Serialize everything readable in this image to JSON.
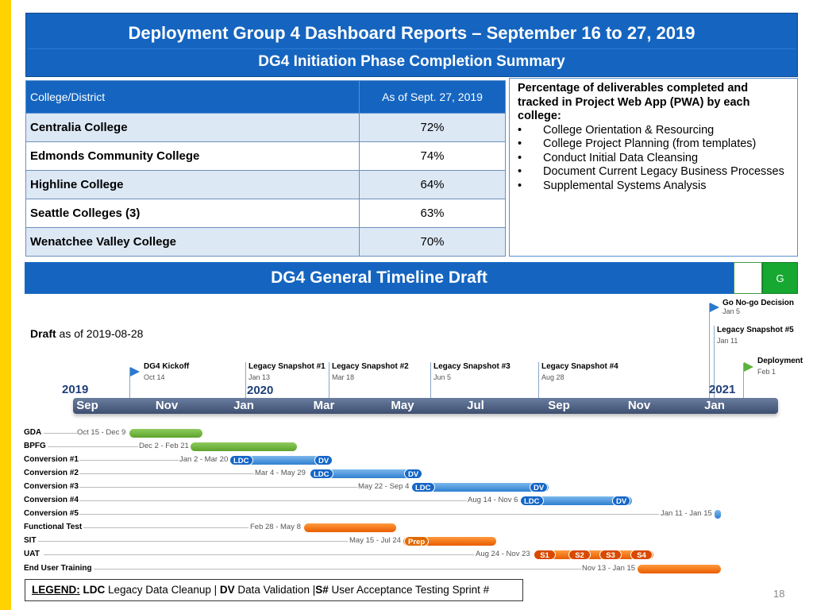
{
  "header": {
    "title": "Deployment Group 4 Dashboard Reports – September 16 to 27, 2019",
    "subtitle": "DG4 Initiation Phase Completion Summary"
  },
  "completion_table": {
    "col_college": "College/District",
    "col_date": "As of Sept. 27, 2019",
    "rows": [
      {
        "college": "Centralia College",
        "pct": "72%"
      },
      {
        "college": "Edmonds Community College",
        "pct": "74%"
      },
      {
        "college": "Highline College",
        "pct": "64%"
      },
      {
        "college": "Seattle Colleges (3)",
        "pct": "63%"
      },
      {
        "college": "Wenatchee Valley College",
        "pct": "70%"
      }
    ]
  },
  "notes": {
    "heading": "Percentage of deliverables completed and tracked in Project Web App (PWA) by each college:",
    "items": [
      "College Orientation & Resourcing",
      "College Project Planning (from templates)",
      "Conduct Initial Data Cleansing",
      "Document Current Legacy Business Processes",
      "Supplemental Systems Analysis"
    ]
  },
  "timeline_header": {
    "title": "DG4 General Timeline Draft",
    "status": "G",
    "status_color": "#16a830"
  },
  "draft": {
    "bold": "Draft",
    "rest": " as of 2019-08-28"
  },
  "milestones": [
    {
      "label": "DG4 Kickoff",
      "date": "Oct 14"
    },
    {
      "label": "Legacy Snapshot #1",
      "date": "Jan 13"
    },
    {
      "label": "Legacy Snapshot #2",
      "date": "Mar 18"
    },
    {
      "label": "Legacy Snapshot #3",
      "date": "Jun 5"
    },
    {
      "label": "Legacy Snapshot #4",
      "date": "Aug 28"
    },
    {
      "label": "Go No-go Decision",
      "date": "Jan 5"
    },
    {
      "label": "Legacy Snapshot #5",
      "date": "Jan 11"
    },
    {
      "label": "Deployment",
      "date": "Feb 1"
    }
  ],
  "years": [
    "2019",
    "2020",
    "2021"
  ],
  "months": [
    "Sep",
    "Nov",
    "Jan",
    "Mar",
    "May",
    "Jul",
    "Sep",
    "Nov",
    "Jan"
  ],
  "tasks": [
    {
      "name": "GDA",
      "range": "Oct 15 - Dec 9"
    },
    {
      "name": "BPFG",
      "range": "Dec 2 - Feb 21"
    },
    {
      "name": "Conversion #1",
      "range": "Jan 2 - Mar 20"
    },
    {
      "name": "Conversion #2",
      "range": "Mar 4 - May 29"
    },
    {
      "name": "Conversion #3",
      "range": "May 22 - Sep 4"
    },
    {
      "name": "Conversion #4",
      "range": "Aug 14 - Nov 6"
    },
    {
      "name": "Conversion #5",
      "range": "Jan 11 - Jan 15"
    },
    {
      "name": "Functional Test",
      "range": "Feb 28 - May 8"
    },
    {
      "name": "SIT",
      "range": "May 15 - Jul 24"
    },
    {
      "name": "UAT",
      "range": "Aug 24 - Nov 23"
    },
    {
      "name": "End User Training",
      "range": "Nov 13 - Jan 15"
    }
  ],
  "pills": {
    "ldc": "LDC",
    "dv": "DV",
    "prep": "Prep",
    "s1": "S1",
    "s2": "S2",
    "s3": "S3",
    "s4": "S4"
  },
  "legend": {
    "prefix": "LEGEND:",
    "ldc": "LDC",
    "ldc_text": " Legacy Data Cleanup | ",
    "dv": "DV",
    "dv_text": " Data Validation |",
    "s": "S#",
    "s_text": " User Acceptance Testing Sprint #"
  },
  "page_number": "18"
}
